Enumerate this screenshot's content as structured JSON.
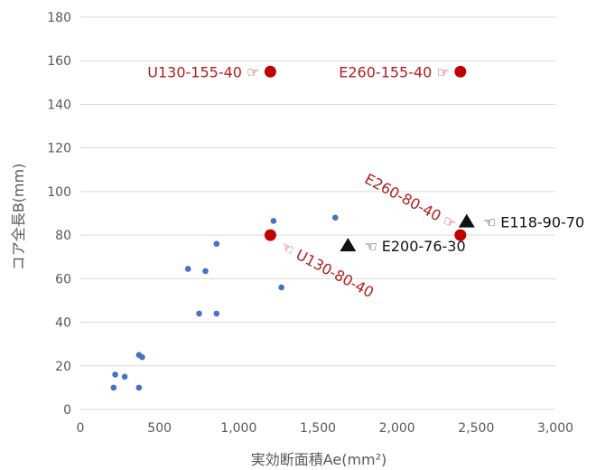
{
  "chart_data": {
    "type": "scatter",
    "xlabel": "実効断面積Ae(mm²)",
    "ylabel": "コア全長B(mm)",
    "xlim": [
      0,
      3000
    ],
    "ylim": [
      0,
      180
    ],
    "x_ticks": [
      "0",
      "500",
      "1,000",
      "1,500",
      "2,000",
      "2,500",
      "3,000"
    ],
    "y_ticks": [
      "0",
      "20",
      "40",
      "60",
      "80",
      "100",
      "120",
      "140",
      "160",
      "180"
    ],
    "grid": "horizontal",
    "colors": {
      "blue": "#4472c4",
      "red": "#c00000",
      "black": "#111111",
      "grid": "#d9d9d9"
    },
    "series": [
      {
        "marker": "small-circle",
        "color": "#4472c4",
        "points": [
          [
            210,
            10
          ],
          [
            220,
            16
          ],
          [
            280,
            15
          ],
          [
            370,
            25
          ],
          [
            390,
            24
          ],
          [
            370,
            10
          ],
          [
            680,
            64.5
          ],
          [
            750,
            44
          ],
          [
            790,
            63.5
          ],
          [
            860,
            44
          ],
          [
            860,
            76
          ],
          [
            1220,
            86.5
          ],
          [
            1270,
            56
          ],
          [
            1610,
            88
          ]
        ]
      },
      {
        "marker": "large-circle",
        "color": "#c00000",
        "points": [
          [
            1200,
            155
          ],
          [
            2400,
            155
          ],
          [
            1200,
            80
          ],
          [
            2400,
            80
          ]
        ]
      },
      {
        "marker": "triangle",
        "color": "#111111",
        "points": [
          [
            1690,
            75
          ],
          [
            2440,
            86
          ]
        ]
      }
    ],
    "annotations": [
      {
        "text": "U130-155-40 ☞",
        "x": 1200,
        "y": 155,
        "color": "red",
        "anchor": "left-of-point"
      },
      {
        "text": "E260-155-40 ☞",
        "x": 2400,
        "y": 155,
        "color": "red",
        "anchor": "left-of-point"
      },
      {
        "text": "E260-80-40 ☞",
        "x": 2400,
        "y": 80,
        "color": "red",
        "anchor": "upper-left-diagonal"
      },
      {
        "text": "☜ U130-80-40",
        "x": 1200,
        "y": 80,
        "color": "red",
        "anchor": "lower-right-diagonal"
      },
      {
        "text": "☜ E200-76-30",
        "x": 1690,
        "y": 75,
        "color": "black",
        "anchor": "right-of-point"
      },
      {
        "text": "☜ E118-90-70",
        "x": 2440,
        "y": 86,
        "color": "black",
        "anchor": "right-of-point"
      }
    ]
  }
}
